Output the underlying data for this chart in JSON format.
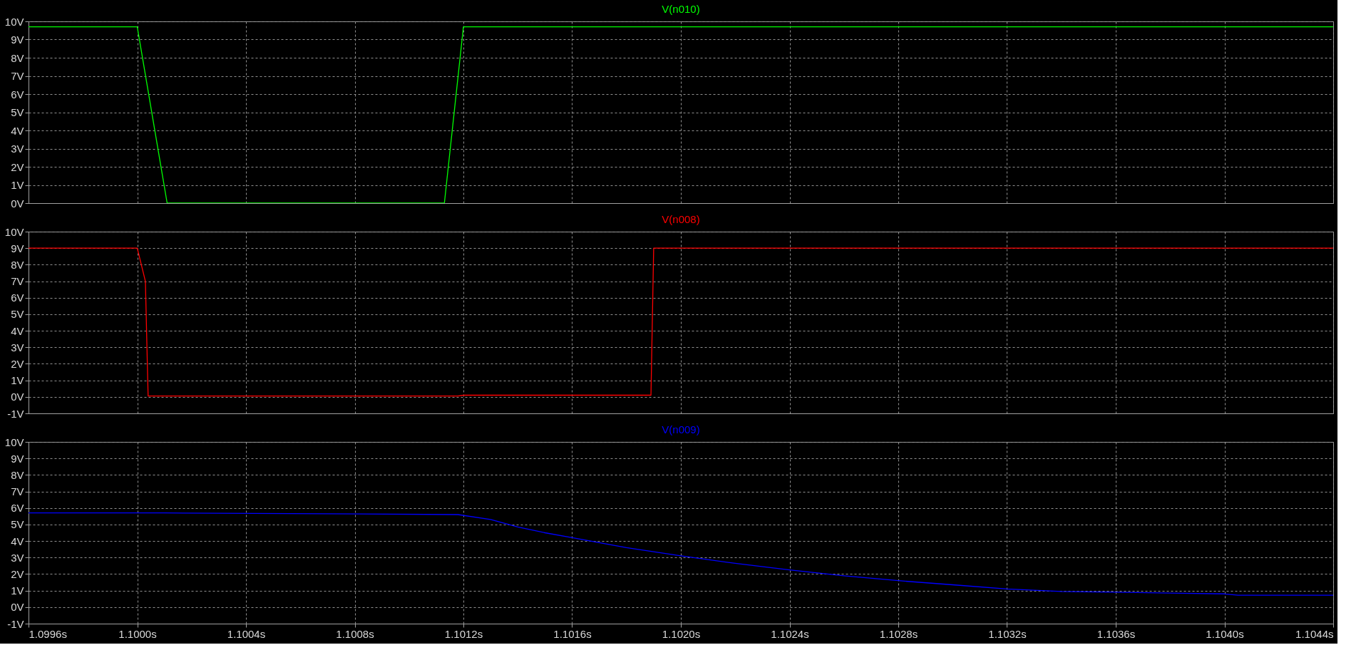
{
  "chart_data": [
    {
      "type": "line",
      "title": "V(n010)",
      "x": [
        1.0996,
        1.1,
        1.10011,
        1.10113,
        1.1012,
        1.1044
      ],
      "series": [
        {
          "color": "#00ff00",
          "values": [
            9.7,
            9.7,
            0,
            0,
            9.7,
            9.7
          ]
        }
      ],
      "xlim": [
        1.0996,
        1.1044
      ],
      "xticks": [
        {
          "value": 1.0996,
          "label": null
        },
        {
          "value": 1.1,
          "label": null
        },
        {
          "value": 1.1004,
          "label": null
        },
        {
          "value": 1.1008,
          "label": null
        },
        {
          "value": 1.1012,
          "label": null
        },
        {
          "value": 1.1016,
          "label": null
        },
        {
          "value": 1.102,
          "label": null
        },
        {
          "value": 1.1024,
          "label": null
        },
        {
          "value": 1.1028,
          "label": null
        },
        {
          "value": 1.1032,
          "label": null
        },
        {
          "value": 1.1036,
          "label": null
        },
        {
          "value": 1.104,
          "label": null
        },
        {
          "value": 1.1044,
          "label": null
        }
      ],
      "ylim": [
        0,
        10
      ],
      "yticks": [
        {
          "value": 0,
          "label": "0V"
        },
        {
          "value": 1,
          "label": "1V"
        },
        {
          "value": 2,
          "label": "2V"
        },
        {
          "value": 3,
          "label": "3V"
        },
        {
          "value": 4,
          "label": "4V"
        },
        {
          "value": 5,
          "label": "5V"
        },
        {
          "value": 6,
          "label": "6V"
        },
        {
          "value": 7,
          "label": "7V"
        },
        {
          "value": 8,
          "label": "8V"
        },
        {
          "value": 9,
          "label": "9V"
        },
        {
          "value": 10,
          "label": "10V"
        }
      ],
      "grid": true,
      "tick_labels": "y"
    },
    {
      "type": "line",
      "title": "V(n008)",
      "x": [
        1.0996,
        1.1,
        1.10003,
        1.10004,
        1.10118,
        1.1012,
        1.10189,
        1.1019,
        1.1044
      ],
      "series": [
        {
          "color": "#ff0000",
          "values": [
            9,
            9,
            7,
            0.05,
            0.05,
            0.1,
            0.1,
            9,
            9
          ]
        }
      ],
      "xlim": [
        1.0996,
        1.1044
      ],
      "xticks": [
        {
          "value": 1.0996,
          "label": null
        },
        {
          "value": 1.1,
          "label": null
        },
        {
          "value": 1.1004,
          "label": null
        },
        {
          "value": 1.1008,
          "label": null
        },
        {
          "value": 1.1012,
          "label": null
        },
        {
          "value": 1.1016,
          "label": null
        },
        {
          "value": 1.102,
          "label": null
        },
        {
          "value": 1.1024,
          "label": null
        },
        {
          "value": 1.1028,
          "label": null
        },
        {
          "value": 1.1032,
          "label": null
        },
        {
          "value": 1.1036,
          "label": null
        },
        {
          "value": 1.104,
          "label": null
        },
        {
          "value": 1.1044,
          "label": null
        }
      ],
      "ylim": [
        -1,
        10
      ],
      "yticks": [
        {
          "value": -1,
          "label": "-1V"
        },
        {
          "value": 0,
          "label": "0V"
        },
        {
          "value": 1,
          "label": "1V"
        },
        {
          "value": 2,
          "label": "2V"
        },
        {
          "value": 3,
          "label": "3V"
        },
        {
          "value": 4,
          "label": "4V"
        },
        {
          "value": 5,
          "label": "5V"
        },
        {
          "value": 6,
          "label": "6V"
        },
        {
          "value": 7,
          "label": "7V"
        },
        {
          "value": 8,
          "label": "8V"
        },
        {
          "value": 9,
          "label": "9V"
        },
        {
          "value": 10,
          "label": "10V"
        }
      ],
      "grid": true,
      "tick_labels": "y"
    },
    {
      "type": "line",
      "title": "V(n009)",
      "x": [
        1.0996,
        1.1001,
        1.1007,
        1.10118,
        1.1013,
        1.1014,
        1.1015,
        1.1016,
        1.1018,
        1.102,
        1.1022,
        1.1024,
        1.1026,
        1.1028,
        1.103,
        1.1032,
        1.1034,
        1.1036,
        1.1038,
        1.104,
        1.10405,
        1.1044
      ],
      "series": [
        {
          "color": "#0000ff",
          "values": [
            5.7,
            5.7,
            5.65,
            5.6,
            5.3,
            4.85,
            4.5,
            4.2,
            3.6,
            3.1,
            2.65,
            2.25,
            1.9,
            1.6,
            1.35,
            1.1,
            0.95,
            0.9,
            0.85,
            0.8,
            0.72,
            0.72
          ]
        }
      ],
      "xlim": [
        1.0996,
        1.1044
      ],
      "xticks": [
        {
          "value": 1.0996,
          "label": "1.0996s"
        },
        {
          "value": 1.1,
          "label": "1.1000s"
        },
        {
          "value": 1.1004,
          "label": "1.1004s"
        },
        {
          "value": 1.1008,
          "label": "1.1008s"
        },
        {
          "value": 1.1012,
          "label": "1.1012s"
        },
        {
          "value": 1.1016,
          "label": "1.1016s"
        },
        {
          "value": 1.102,
          "label": "1.1020s"
        },
        {
          "value": 1.1024,
          "label": "1.1024s"
        },
        {
          "value": 1.1028,
          "label": "1.1028s"
        },
        {
          "value": 1.1032,
          "label": "1.1032s"
        },
        {
          "value": 1.1036,
          "label": "1.1036s"
        },
        {
          "value": 1.104,
          "label": "1.1040s"
        },
        {
          "value": 1.1044,
          "label": "1.1044s"
        }
      ],
      "ylim": [
        -1,
        10
      ],
      "yticks": [
        {
          "value": -1,
          "label": "-1V"
        },
        {
          "value": 0,
          "label": "0V"
        },
        {
          "value": 1,
          "label": "1V"
        },
        {
          "value": 2,
          "label": "2V"
        },
        {
          "value": 3,
          "label": "3V"
        },
        {
          "value": 4,
          "label": "4V"
        },
        {
          "value": 5,
          "label": "5V"
        },
        {
          "value": 6,
          "label": "6V"
        },
        {
          "value": 7,
          "label": "7V"
        },
        {
          "value": 8,
          "label": "8V"
        },
        {
          "value": 9,
          "label": "9V"
        },
        {
          "value": 10,
          "label": "10V"
        }
      ],
      "grid": true
    }
  ]
}
